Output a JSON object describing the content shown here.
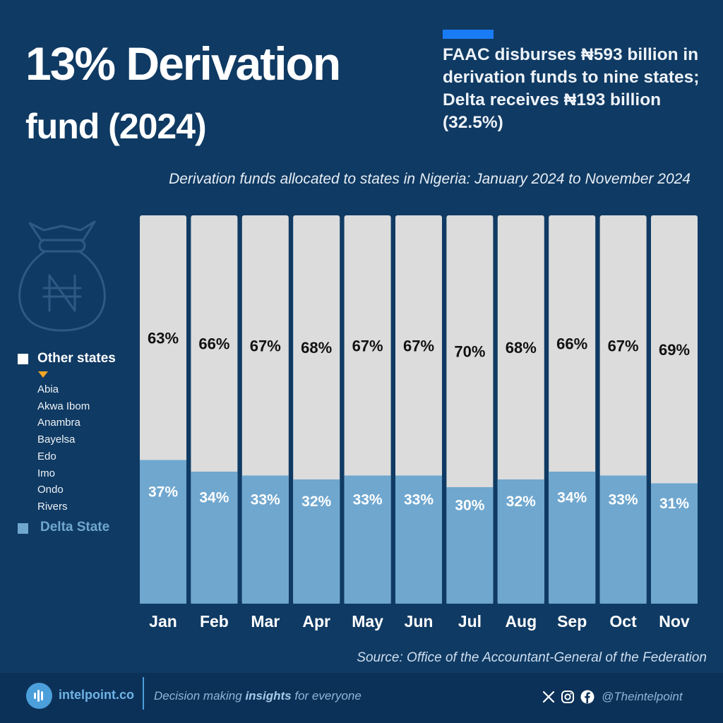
{
  "header": {
    "title_line1": "13% Derivation",
    "title_line2": "fund (2024)",
    "headline": "FAAC disburses ₦593 billion in derivation funds to nine states; Delta receives ₦193 billion (32.5%)",
    "accent_color": "#1a7cf5"
  },
  "legend": {
    "other_label": "Other states",
    "other_color": "#dcdcdc",
    "other_states": [
      "Abia",
      "Akwa Ibom",
      "Anambra",
      "Bayelsa",
      "Edo",
      "Imo",
      "Ondo",
      "Rivers"
    ],
    "delta_label": "Delta State",
    "delta_color": "#6fa7cf",
    "marker_color": "#f5a623",
    "decor_icon": "naira-money-bag-icon"
  },
  "chart_data": {
    "type": "bar",
    "stacked": true,
    "title": "Derivation funds allocated to states in Nigeria: January 2024 to November 2024",
    "xlabel": "",
    "ylabel": "",
    "ylim": [
      0,
      100
    ],
    "categories": [
      "Jan",
      "Feb",
      "Mar",
      "Apr",
      "May",
      "Jun",
      "Jul",
      "Aug",
      "Sep",
      "Oct",
      "Nov"
    ],
    "series": [
      {
        "name": "Delta State",
        "values": [
          37,
          34,
          33,
          32,
          33,
          33,
          30,
          32,
          34,
          33,
          31
        ],
        "labels": [
          "37%",
          "34%",
          "33%",
          "32%",
          "33%",
          "33%",
          "30%",
          "32%",
          "34%",
          "33%",
          "31%"
        ],
        "color": "#6fa7cf"
      },
      {
        "name": "Other states",
        "values": [
          63,
          66,
          67,
          68,
          67,
          67,
          70,
          68,
          66,
          67,
          69
        ],
        "labels": [
          "63%",
          "66%",
          "67%",
          "68%",
          "67%",
          "67%",
          "70%",
          "68%",
          "66%",
          "67%",
          "69%"
        ],
        "color": "#dcdcdc"
      }
    ],
    "grid": false,
    "legend_position": "left"
  },
  "source": "Source: Office of the Accountant-General of the Federation",
  "footer": {
    "logo_text": "intelpoint.co",
    "tagline_pre": "Decision making ",
    "tagline_bold": "insights",
    "tagline_post": " for everyone",
    "social_icons": [
      "x-icon",
      "instagram-icon",
      "facebook-icon"
    ],
    "handle": "@Theintelpoint"
  }
}
